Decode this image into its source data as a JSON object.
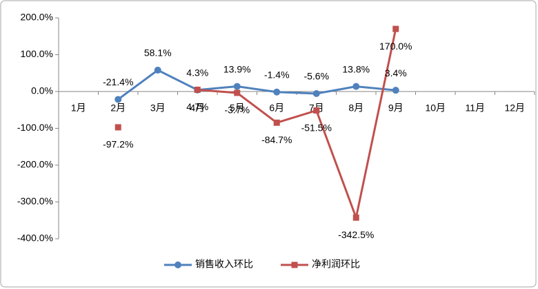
{
  "chart_data": {
    "type": "line",
    "categories": [
      "1月",
      "2月",
      "3月",
      "4月",
      "5月",
      "6月",
      "7月",
      "8月",
      "9月",
      "10月",
      "11月",
      "12月"
    ],
    "series": [
      {
        "name": "销售收入环比",
        "color": "#4f81bd",
        "marker": "circle",
        "values": [
          null,
          -21.4,
          58.1,
          4.3,
          13.9,
          -1.4,
          -5.6,
          13.8,
          3.4,
          null,
          null,
          null
        ],
        "value_labels": [
          null,
          "-21.4%",
          "58.1%",
          "4.3%",
          "13.9%",
          "-1.4%",
          "-5.6%",
          "13.8%",
          "3.4%",
          null,
          null,
          null
        ]
      },
      {
        "name": "净利润环比",
        "color": "#c0504d",
        "marker": "square",
        "values": [
          null,
          -97.2,
          null,
          4.7,
          -3.7,
          -84.7,
          -51.5,
          -342.5,
          170.0,
          null,
          null,
          null
        ],
        "value_labels": [
          null,
          "-97.2%",
          null,
          "4.7%",
          "-3.7%",
          "-84.7%",
          "-51.5%",
          "-342.5%",
          "170.0%",
          null,
          null,
          null
        ]
      }
    ],
    "ylim": [
      -400,
      200
    ],
    "yticks": [
      {
        "value": -400,
        "label": "-400.0%"
      },
      {
        "value": -300,
        "label": "-300.0%"
      },
      {
        "value": -200,
        "label": "-200.0%"
      },
      {
        "value": -100,
        "label": "-100.0%"
      },
      {
        "value": 0,
        "label": "0.0%"
      },
      {
        "value": 100,
        "label": "100.0%"
      },
      {
        "value": 200,
        "label": "200.0%"
      }
    ],
    "legend": "bottom"
  }
}
